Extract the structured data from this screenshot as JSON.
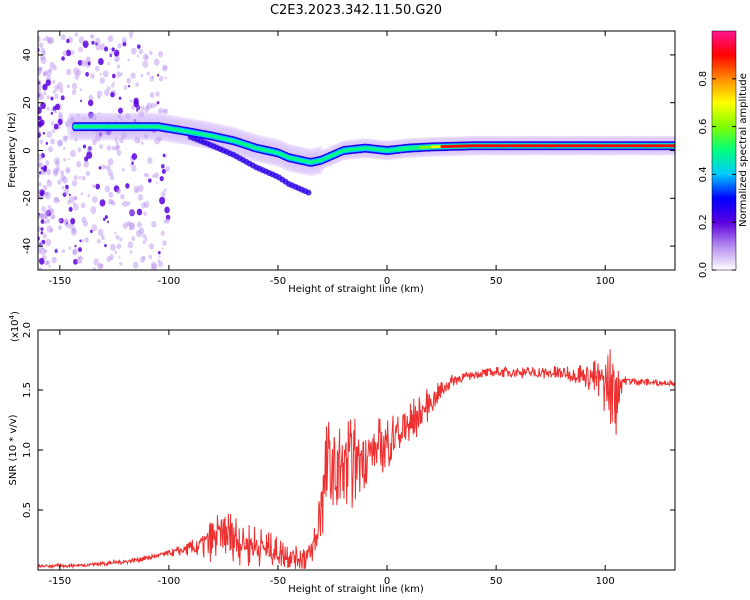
{
  "title": "C2E3.2023.342.11.50.G20",
  "chart_data": [
    {
      "type": "heatmap",
      "xlabel": "Height of straight line (km)",
      "ylabel": "Frequency (Hz)",
      "xlim": [
        -160,
        132
      ],
      "ylim": [
        -50,
        50
      ],
      "xticks": [
        -150,
        -100,
        -50,
        0,
        50,
        100
      ],
      "yticks": [
        -40,
        -20,
        0,
        20,
        40
      ],
      "colorbar": {
        "label": "Normalized spectral amplitude",
        "range": [
          0,
          1
        ],
        "ticks": [
          "0.0",
          "0.2",
          "0.4",
          "0.6",
          "0.8"
        ],
        "colors": [
          "#ffffff",
          "#b58cf0",
          "#5a00e0",
          "#0000ff",
          "#00c8ff",
          "#00ff7f",
          "#7fff00",
          "#ffff00",
          "#ff8c00",
          "#ff0000",
          "#ff1493"
        ]
      },
      "ridge": {
        "x": [
          -143,
          -120,
          -105,
          -92,
          -80,
          -70,
          -60,
          -50,
          -45,
          -40,
          -35,
          -30,
          -25,
          -20,
          -10,
          0,
          10,
          20,
          40,
          60,
          80,
          100,
          120,
          132
        ],
        "y": [
          10,
          10,
          10,
          8,
          6,
          4,
          1,
          -1,
          -3,
          -4,
          -5,
          -4,
          -2,
          0,
          1,
          0,
          1,
          1.5,
          2,
          2,
          2,
          2,
          2,
          2
        ]
      },
      "grid": false,
      "legend": "none"
    },
    {
      "type": "line",
      "xlabel": "Height of straight line (km)",
      "ylabel": "SNR (10 * v/v)",
      "scale_label": "(x10",
      "scale_exp": "4",
      "scale_close": ")",
      "xlim": [
        -160,
        132
      ],
      "ylim": [
        0,
        2.0
      ],
      "xticks": [
        -150,
        -100,
        -50,
        0,
        50,
        100
      ],
      "yticks": [
        "0.5",
        "1.0",
        "1.5",
        "2.0"
      ],
      "color": "#ee3030",
      "envelope": {
        "x": [
          -160,
          -140,
          -120,
          -110,
          -100,
          -95,
          -90,
          -85,
          -80,
          -75,
          -70,
          -65,
          -60,
          -55,
          -50,
          -45,
          -40,
          -35,
          -32,
          -30,
          -27,
          -25,
          -20,
          -15,
          -10,
          -5,
          0,
          5,
          10,
          15,
          20,
          25,
          30,
          40,
          50,
          60,
          70,
          80,
          90,
          95,
          100,
          103,
          105,
          108,
          115,
          125,
          132
        ],
        "y": [
          0.03,
          0.04,
          0.07,
          0.1,
          0.14,
          0.16,
          0.18,
          0.2,
          0.25,
          0.3,
          0.28,
          0.22,
          0.2,
          0.18,
          0.15,
          0.12,
          0.1,
          0.12,
          0.3,
          0.6,
          0.9,
          0.8,
          0.85,
          0.9,
          0.95,
          1.0,
          1.05,
          1.15,
          1.2,
          1.3,
          1.4,
          1.5,
          1.58,
          1.63,
          1.65,
          1.65,
          1.64,
          1.64,
          1.63,
          1.6,
          1.55,
          1.5,
          1.48,
          1.58,
          1.57,
          1.56,
          1.56
        ]
      },
      "noise": {
        "x": [
          -160,
          -100,
          -90,
          -80,
          -70,
          -60,
          -50,
          -40,
          -35,
          -30,
          -25,
          -20,
          -15,
          -10,
          0,
          10,
          20,
          25,
          30,
          40,
          80,
          90,
          95,
          100,
          104,
          108,
          132
        ],
        "amp": [
          0.01,
          0.02,
          0.05,
          0.15,
          0.18,
          0.14,
          0.1,
          0.08,
          0.12,
          0.3,
          0.35,
          0.35,
          0.3,
          0.22,
          0.2,
          0.18,
          0.1,
          0.06,
          0.04,
          0.03,
          0.05,
          0.08,
          0.12,
          0.2,
          0.4,
          0.03,
          0.02
        ]
      },
      "grid": false,
      "legend": "none"
    }
  ]
}
